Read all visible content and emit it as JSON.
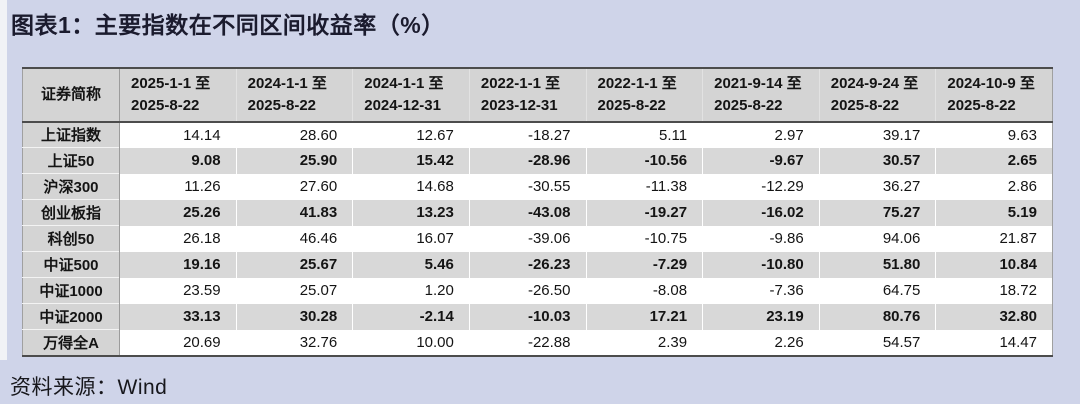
{
  "page": {
    "title": "图表1：主要指数在不同区间收益率（%）",
    "source": "资料来源：Wind"
  },
  "colors": {
    "page_bg": "#cfd4e9",
    "header_bg": "#d4d4d4",
    "zebra_row_bg": "#d8d8d8",
    "row_bg": "#ffffff",
    "border_dark": "#4c4c4c",
    "border_light": "#a0a0a0",
    "text": "#141414"
  },
  "chart_data": {
    "type": "table",
    "title": "主要指数在不同区间收益率（%）",
    "columns": [
      "证券简称",
      "2025-1-1 至\n2025-8-22",
      "2024-1-1 至\n2025-8-22",
      "2024-1-1 至\n2024-12-31",
      "2022-1-1 至\n2023-12-31",
      "2022-1-1 至\n2025-8-22",
      "2021-9-14 至\n2025-8-22",
      "2024-9-24 至\n2025-8-22",
      "2024-10-9 至\n2025-8-22"
    ],
    "rows": [
      {
        "name": "上证指数",
        "values": [
          14.14,
          28.6,
          12.67,
          -18.27,
          5.11,
          2.97,
          39.17,
          9.63
        ]
      },
      {
        "name": "上证50",
        "values": [
          9.08,
          25.9,
          15.42,
          -28.96,
          -10.56,
          -9.67,
          30.57,
          2.65
        ]
      },
      {
        "name": "沪深300",
        "values": [
          11.26,
          27.6,
          14.68,
          -30.55,
          -11.38,
          -12.29,
          36.27,
          2.86
        ]
      },
      {
        "name": "创业板指",
        "values": [
          25.26,
          41.83,
          13.23,
          -43.08,
          -19.27,
          -16.02,
          75.27,
          5.19
        ]
      },
      {
        "name": "科创50",
        "values": [
          26.18,
          46.46,
          16.07,
          -39.06,
          -10.75,
          -9.86,
          94.06,
          21.87
        ]
      },
      {
        "name": "中证500",
        "values": [
          19.16,
          25.67,
          5.46,
          -26.23,
          -7.29,
          -10.8,
          51.8,
          10.84
        ]
      },
      {
        "name": "中证1000",
        "values": [
          23.59,
          25.07,
          1.2,
          -26.5,
          -8.08,
          -7.36,
          64.75,
          18.72
        ]
      },
      {
        "name": "中证2000",
        "values": [
          33.13,
          30.28,
          -2.14,
          -10.03,
          17.21,
          23.19,
          80.76,
          32.8
        ]
      },
      {
        "name": "万得全A",
        "values": [
          20.69,
          32.76,
          10.0,
          -22.88,
          2.39,
          2.26,
          54.57,
          14.47
        ]
      }
    ]
  }
}
